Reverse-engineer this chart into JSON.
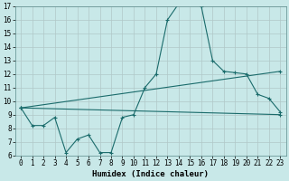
{
  "xlabel": "Humidex (Indice chaleur)",
  "ylabel": "",
  "xlim": [
    -0.5,
    23.5
  ],
  "ylim": [
    6,
    17
  ],
  "yticks": [
    6,
    7,
    8,
    9,
    10,
    11,
    12,
    13,
    14,
    15,
    16,
    17
  ],
  "xticks": [
    0,
    1,
    2,
    3,
    4,
    5,
    6,
    7,
    8,
    9,
    10,
    11,
    12,
    13,
    14,
    15,
    16,
    17,
    18,
    19,
    20,
    21,
    22,
    23
  ],
  "background_color": "#c8e8e8",
  "grid_color": "#b0c8c8",
  "line_color": "#1a6b6b",
  "curve1_x": [
    0,
    1,
    2,
    3,
    4,
    5,
    6,
    7,
    8,
    9,
    10,
    11,
    12,
    13,
    14,
    15,
    16,
    17,
    18,
    19,
    20,
    21,
    22,
    23
  ],
  "curve1_y": [
    9.5,
    8.2,
    8.2,
    8.8,
    6.2,
    7.2,
    7.5,
    6.2,
    6.2,
    8.8,
    9.0,
    11.0,
    12.0,
    16.0,
    17.2,
    17.3,
    17.0,
    13.0,
    12.2,
    12.1,
    12.0,
    10.5,
    10.2,
    9.2
  ],
  "curve2_x": [
    0,
    23
  ],
  "curve2_y": [
    9.5,
    12.2
  ],
  "curve3_x": [
    0,
    23
  ],
  "curve3_y": [
    9.5,
    9.0
  ],
  "axis_fontsize": 6.5,
  "tick_fontsize": 5.5
}
